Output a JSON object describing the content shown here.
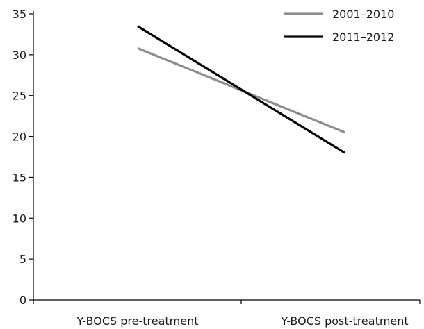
{
  "chart_data": {
    "type": "line",
    "categories": [
      "Y-BOCS pre-treatment",
      "Y-BOCS post-treatment"
    ],
    "series": [
      {
        "name": "2001–2010",
        "values": [
          30.8,
          20.5
        ],
        "color": "#8c8c8c"
      },
      {
        "name": "2011–2012",
        "values": [
          33.5,
          18.0
        ],
        "color": "#000000"
      }
    ],
    "y_ticks": [
      "0",
      "5",
      "10",
      "15",
      "20",
      "25",
      "30",
      "35"
    ],
    "ylim": [
      0,
      35
    ],
    "grid": false,
    "legend": "top-right",
    "title": "",
    "xlabel": "",
    "ylabel": ""
  }
}
